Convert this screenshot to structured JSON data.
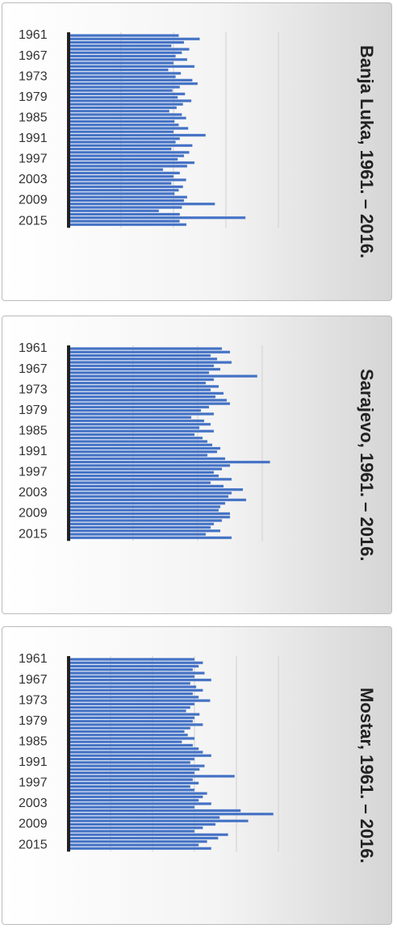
{
  "chart_data": [
    {
      "type": "hbar",
      "title": "Banja Luka, 1961. – 2016.",
      "color": "#4472c4",
      "grid": true,
      "categories": [
        "1961",
        null,
        null,
        null,
        null,
        null,
        "1967",
        null,
        null,
        null,
        null,
        null,
        "1973",
        null,
        null,
        null,
        null,
        null,
        "1979",
        null,
        null,
        null,
        null,
        null,
        "1985",
        null,
        null,
        null,
        null,
        null,
        "1991",
        null,
        null,
        null,
        null,
        null,
        "1997",
        null,
        null,
        null,
        null,
        null,
        "2003",
        null,
        null,
        null,
        null,
        null,
        "2009",
        null,
        null,
        null,
        null,
        null,
        "2015",
        null
      ],
      "values": [
        1050,
        1250,
        1100,
        980,
        1150,
        1080,
        1020,
        1130,
        1000,
        1200,
        950,
        1070,
        1020,
        1180,
        1230,
        1060,
        990,
        1110,
        1040,
        1170,
        1090,
        1030,
        960,
        1080,
        1120,
        1010,
        1050,
        1140,
        1000,
        1306,
        1060,
        1020,
        1180,
        980,
        1150,
        1100,
        1040,
        1200,
        1130,
        900,
        1060,
        1000,
        1120,
        980,
        1090,
        1050,
        1010,
        1130,
        1100,
        1395,
        1080,
        860,
        1060,
        1686,
        1058,
        1123
      ],
      "xlim": [
        0,
        2000
      ],
      "xticks": [
        500,
        1000,
        1500,
        2000
      ]
    },
    {
      "type": "hbar",
      "title": "Sarajevo, 1961. – 2016.",
      "color": "#4472c4",
      "grid": true,
      "categories": [
        "1961",
        null,
        null,
        null,
        null,
        null,
        "1967",
        null,
        null,
        null,
        null,
        null,
        "1973",
        null,
        null,
        null,
        null,
        null,
        "1979",
        null,
        null,
        null,
        null,
        null,
        "1985",
        null,
        null,
        null,
        null,
        null,
        "1991",
        null,
        null,
        null,
        null,
        null,
        "1997",
        null,
        null,
        null,
        null,
        null,
        "2003",
        null,
        null,
        null,
        null,
        null,
        "2009",
        null,
        null,
        null,
        null,
        null,
        "2015",
        null
      ],
      "values": [
        950,
        1000,
        880,
        920,
        1010,
        900,
        940,
        870,
        1169,
        900,
        850,
        930,
        880,
        960,
        910,
        980,
        1000,
        870,
        820,
        900,
        760,
        840,
        880,
        810,
        900,
        780,
        830,
        860,
        890,
        940,
        920,
        860,
        970,
        1248,
        1000,
        950,
        900,
        930,
        1010,
        880,
        960,
        1080,
        1010,
        990,
        1100,
        970,
        940,
        930,
        1000,
        1000,
        950,
        900,
        880,
        940,
        850,
        1010
      ],
      "xlim": [
        0,
        1300
      ],
      "xticks": [
        400,
        800,
        1200
      ]
    },
    {
      "type": "hbar",
      "title": "Mostar, 1961. – 2016.",
      "color": "#4472c4",
      "grid": true,
      "categories": [
        "1961",
        null,
        null,
        null,
        null,
        null,
        "1967",
        null,
        null,
        null,
        null,
        null,
        "1973",
        null,
        null,
        null,
        null,
        null,
        "1979",
        null,
        null,
        null,
        null,
        null,
        "1985",
        null,
        null,
        null,
        null,
        null,
        "1991",
        null,
        null,
        null,
        null,
        null,
        "1997",
        null,
        null,
        null,
        null,
        null,
        "2003",
        null,
        null,
        null,
        null,
        null,
        "2009",
        null,
        null,
        null,
        null,
        null,
        "2015",
        null
      ],
      "values": [
        1500,
        1600,
        1550,
        1480,
        1620,
        1500,
        1700,
        1450,
        1520,
        1600,
        1480,
        1550,
        1687,
        1500,
        1450,
        1400,
        1560,
        1500,
        1480,
        1600,
        1450,
        1380,
        1420,
        1500,
        1350,
        1480,
        1550,
        1600,
        1700,
        1500,
        1450,
        1620,
        1560,
        1500,
        1978,
        1480,
        1550,
        1450,
        1500,
        1650,
        1600,
        1550,
        1700,
        1500,
        2050,
        2440,
        1800,
        2140,
        1750,
        1600,
        1500,
        1900,
        1782,
        1650,
        1550,
        1700
      ],
      "xlim": [
        0,
        2500
      ],
      "xticks": [
        500,
        1000,
        1500,
        2000,
        2500
      ]
    }
  ]
}
